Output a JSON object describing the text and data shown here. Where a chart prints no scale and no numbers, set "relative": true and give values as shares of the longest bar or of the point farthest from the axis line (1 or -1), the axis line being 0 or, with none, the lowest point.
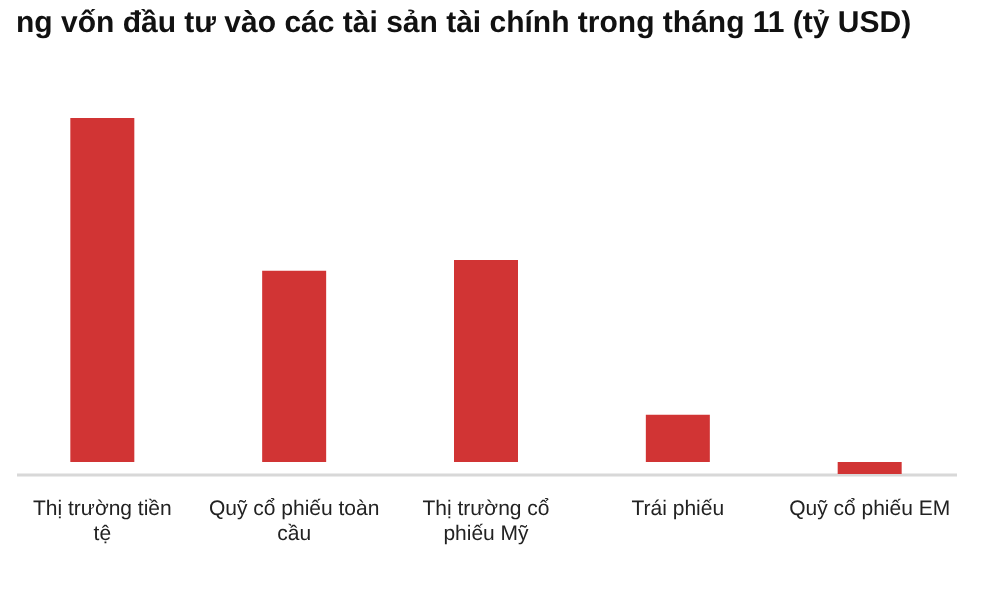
{
  "chart_data": {
    "type": "bar",
    "title": "ng vốn đầu tư vào các tài sản tài chính trong tháng 11 (tỷ USD)",
    "categories": [
      "Thị trường tiền tệ",
      "Quỹ cổ phiếu toàn cầu",
      "Thị trường cổ phiếu Mỹ",
      "Trái phiếu",
      "Quỹ cổ phiếu EM"
    ],
    "values": [
      1,
      0.556,
      0.587,
      0.137,
      -0.035
    ],
    "color": "#d13434",
    "relative": true
  }
}
